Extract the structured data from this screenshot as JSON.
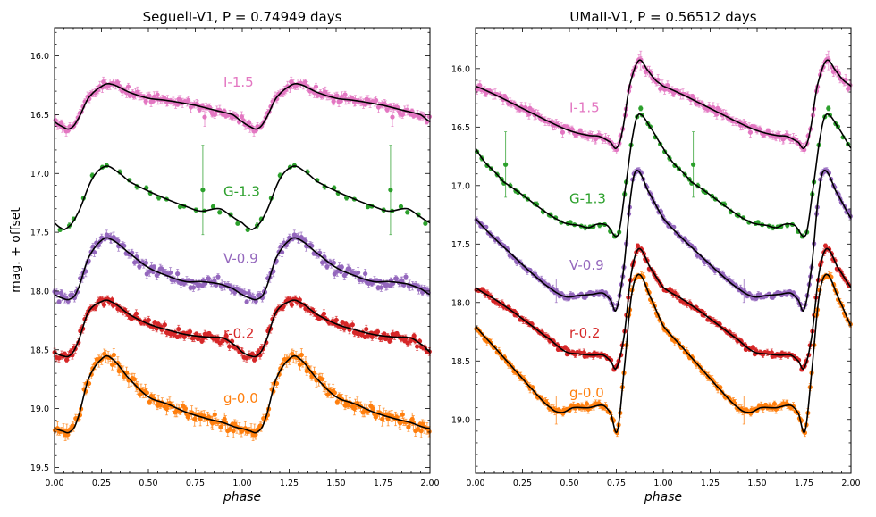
{
  "chart_data": [
    {
      "type": "scatter",
      "title": "SeguelI-V1, P = 0.74949 days",
      "xlabel": "phase",
      "ylabel": "mag. + offset",
      "xlim": [
        0.0,
        2.0
      ],
      "ylim": [
        19.55,
        15.76
      ],
      "y_inverted": true,
      "xticks": [
        "0.00",
        "0.25",
        "0.50",
        "0.75",
        "1.00",
        "1.25",
        "1.50",
        "1.75",
        "2.00"
      ],
      "yticks": [
        "16.0",
        "16.5",
        "17.0",
        "17.5",
        "18.0",
        "18.5",
        "19.0",
        "19.5"
      ],
      "grid": false,
      "series": [
        {
          "name": "I-1.5",
          "color": "#e377c2",
          "n_points": 100,
          "scatter": 0.03,
          "err": 0.03,
          "label_pos": {
            "phase": 0.9,
            "mag": 16.26
          },
          "template": {
            "phase": [
              0.0,
              0.04,
              0.08,
              0.12,
              0.18,
              0.25,
              0.3,
              0.4,
              0.5,
              0.6,
              0.75,
              0.85,
              0.95,
              1.0
            ],
            "mag": [
              16.56,
              16.6,
              16.62,
              16.55,
              16.36,
              16.26,
              16.24,
              16.31,
              16.36,
              16.38,
              16.42,
              16.46,
              16.5,
              16.56
            ]
          },
          "outliers": [
            {
              "phase": 0.8,
              "mag": 16.52,
              "err": 0.08
            }
          ]
        },
        {
          "name": "G-1.3",
          "color": "#2ca02c",
          "n_points": 22,
          "scatter": 0.02,
          "err": 0.015,
          "label_pos": {
            "phase": 0.9,
            "mag": 17.19
          },
          "template": {
            "phase": [
              0.0,
              0.03,
              0.06,
              0.12,
              0.2,
              0.27,
              0.33,
              0.4,
              0.5,
              0.6,
              0.7,
              0.78,
              0.88,
              0.95,
              1.0
            ],
            "mag": [
              17.42,
              17.46,
              17.47,
              17.35,
              17.05,
              16.94,
              16.98,
              17.07,
              17.15,
              17.22,
              17.28,
              17.32,
              17.3,
              17.37,
              17.42
            ]
          },
          "outliers": [
            {
              "phase": 0.79,
              "mag": 17.14,
              "err": 0.38
            }
          ]
        },
        {
          "name": "V-0.9",
          "color": "#9467bd",
          "n_points": 100,
          "scatter": 0.04,
          "err": 0.03,
          "label_pos": {
            "phase": 0.9,
            "mag": 17.76
          },
          "template": {
            "phase": [
              0.0,
              0.04,
              0.08,
              0.12,
              0.18,
              0.25,
              0.3,
              0.4,
              0.5,
              0.6,
              0.7,
              0.78,
              0.88,
              0.95,
              1.0
            ],
            "mag": [
              18.03,
              18.06,
              18.07,
              18.0,
              17.72,
              17.57,
              17.56,
              17.68,
              17.8,
              17.87,
              17.92,
              17.92,
              17.94,
              17.98,
              18.03
            ]
          },
          "outliers": []
        },
        {
          "name": "r-0.2",
          "color": "#d62728",
          "n_points": 100,
          "scatter": 0.03,
          "err": 0.025,
          "label_pos": {
            "phase": 0.9,
            "mag": 18.4
          },
          "template": {
            "phase": [
              0.0,
              0.04,
              0.08,
              0.12,
              0.18,
              0.25,
              0.3,
              0.4,
              0.5,
              0.6,
              0.7,
              0.8,
              0.9,
              0.97,
              1.0
            ],
            "mag": [
              18.52,
              18.55,
              18.55,
              18.45,
              18.18,
              18.09,
              18.09,
              18.2,
              18.28,
              18.33,
              18.37,
              18.39,
              18.4,
              18.47,
              18.52
            ]
          },
          "outliers": []
        },
        {
          "name": "g-0.0",
          "color": "#ff7f0e",
          "n_points": 100,
          "scatter": 0.045,
          "err": 0.04,
          "label_pos": {
            "phase": 0.9,
            "mag": 18.95
          },
          "template": {
            "phase": [
              0.0,
              0.04,
              0.08,
              0.12,
              0.18,
              0.25,
              0.3,
              0.4,
              0.5,
              0.6,
              0.7,
              0.8,
              0.9,
              0.97,
              1.0
            ],
            "mag": [
              19.17,
              19.19,
              19.2,
              19.1,
              18.75,
              18.58,
              18.57,
              18.75,
              18.9,
              18.96,
              19.03,
              19.08,
              19.12,
              19.16,
              19.17
            ]
          },
          "outliers": []
        }
      ]
    },
    {
      "type": "scatter",
      "title": "UMaII-V1, P = 0.56512 days",
      "xlabel": "phase",
      "ylabel": "",
      "xlim": [
        0.0,
        2.0
      ],
      "ylim": [
        19.46,
        15.65
      ],
      "y_inverted": true,
      "xticks": [
        "0.00",
        "0.25",
        "0.50",
        "0.75",
        "1.00",
        "1.25",
        "1.50",
        "1.75",
        "2.00"
      ],
      "yticks": [
        "16.0",
        "16.5",
        "17.0",
        "17.5",
        "18.0",
        "18.5",
        "19.0"
      ],
      "grid": false,
      "series": [
        {
          "name": "I-1.5",
          "color": "#e377c2",
          "n_points": 100,
          "scatter": 0.025,
          "err": 0.03,
          "label_pos": {
            "phase": 0.5,
            "mag": 16.37
          },
          "template": {
            "phase": [
              0.0,
              0.1,
              0.2,
              0.3,
              0.4,
              0.5,
              0.6,
              0.66,
              0.72,
              0.75,
              0.78,
              0.82,
              0.87,
              0.92,
              0.96,
              1.0
            ],
            "mag": [
              16.15,
              16.22,
              16.3,
              16.38,
              16.46,
              16.53,
              16.57,
              16.58,
              16.63,
              16.68,
              16.55,
              16.15,
              15.93,
              16.02,
              16.1,
              16.15
            ]
          },
          "outliers": [
            {
              "phase": 0.88,
              "mag": 15.93,
              "err": 0.08
            }
          ]
        },
        {
          "name": "G-1.3",
          "color": "#2ca02c",
          "n_points": 40,
          "scatter": 0.015,
          "err": 0.015,
          "label_pos": {
            "phase": 0.5,
            "mag": 17.15
          },
          "template": {
            "phase": [
              0.0,
              0.05,
              0.1,
              0.15,
              0.25,
              0.35,
              0.45,
              0.5,
              0.55,
              0.6,
              0.65,
              0.7,
              0.76,
              0.8,
              0.84,
              0.87,
              0.93,
              1.0
            ],
            "mag": [
              16.68,
              16.8,
              16.88,
              16.97,
              17.08,
              17.2,
              17.3,
              17.33,
              17.34,
              17.36,
              17.33,
              17.34,
              17.42,
              17.0,
              16.55,
              16.39,
              16.5,
              16.68
            ]
          },
          "outliers": [
            {
              "phase": 0.16,
              "mag": 16.82,
              "err": 0.28
            },
            {
              "phase": 0.88,
              "mag": 16.34,
              "err": 0.02
            }
          ]
        },
        {
          "name": "V-0.9",
          "color": "#9467bd",
          "n_points": 100,
          "scatter": 0.02,
          "err": 0.02,
          "label_pos": {
            "phase": 0.5,
            "mag": 17.72
          },
          "template": {
            "phase": [
              0.0,
              0.1,
              0.2,
              0.3,
              0.4,
              0.48,
              0.55,
              0.62,
              0.68,
              0.72,
              0.75,
              0.79,
              0.83,
              0.86,
              0.92,
              1.0
            ],
            "mag": [
              17.28,
              17.45,
              17.6,
              17.75,
              17.88,
              17.95,
              17.94,
              17.93,
              17.92,
              17.98,
              18.06,
              17.7,
              17.05,
              16.87,
              17.05,
              17.28
            ]
          },
          "outliers": [
            {
              "phase": 0.43,
              "mag": 17.9,
              "err": 0.1
            }
          ]
        },
        {
          "name": "r-0.2",
          "color": "#d62728",
          "n_points": 100,
          "scatter": 0.02,
          "err": 0.02,
          "label_pos": {
            "phase": 0.5,
            "mag": 18.3
          },
          "template": {
            "phase": [
              0.0,
              0.1,
              0.2,
              0.3,
              0.4,
              0.48,
              0.55,
              0.62,
              0.68,
              0.72,
              0.75,
              0.79,
              0.83,
              0.87,
              0.93,
              1.0
            ],
            "mag": [
              17.87,
              17.97,
              18.08,
              18.2,
              18.32,
              18.42,
              18.44,
              18.45,
              18.45,
              18.5,
              18.56,
              18.3,
              17.75,
              17.54,
              17.7,
              17.87
            ]
          },
          "outliers": []
        },
        {
          "name": "g-0.0",
          "color": "#ff7f0e",
          "n_points": 100,
          "scatter": 0.025,
          "err": 0.025,
          "label_pos": {
            "phase": 0.5,
            "mag": 18.81
          },
          "template": {
            "phase": [
              0.0,
              0.1,
              0.2,
              0.3,
              0.4,
              0.46,
              0.52,
              0.6,
              0.68,
              0.72,
              0.755,
              0.79,
              0.83,
              0.87,
              0.93,
              1.0
            ],
            "mag": [
              18.2,
              18.38,
              18.56,
              18.74,
              18.9,
              18.94,
              18.9,
              18.9,
              18.88,
              18.95,
              19.1,
              18.6,
              17.95,
              17.76,
              17.95,
              18.2
            ]
          },
          "outliers": [
            {
              "phase": 0.43,
              "mag": 18.92,
              "err": 0.12
            }
          ]
        }
      ]
    }
  ]
}
